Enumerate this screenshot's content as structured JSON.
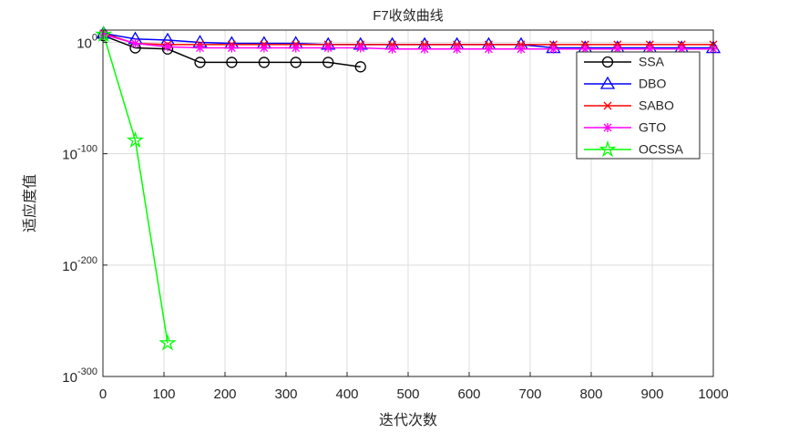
{
  "chart_data": {
    "type": "line",
    "title": "F7收敛曲线",
    "x_label": "迭代次数",
    "y_label": "适应度值",
    "y_scale": "log",
    "grid": true,
    "legend_position": "northeast",
    "xlim": [
      0,
      1000
    ],
    "xticks": [
      0,
      100,
      200,
      300,
      400,
      500,
      600,
      700,
      800,
      900,
      1000
    ],
    "ylim": [
      1e-300,
      100000000000.0
    ],
    "yticks": [
      {
        "value": 1e-300,
        "label": "10^{-300}"
      },
      {
        "value": 1e-200,
        "label": "10^{-200}"
      },
      {
        "value": 1e-100,
        "label": "10^{-100}"
      },
      {
        "value": 1,
        "label": "10^{0}"
      }
    ],
    "series": [
      {
        "name": "SSA",
        "color": "#000000",
        "marker": "circle",
        "x": [
          1,
          53,
          106,
          159,
          211,
          264,
          316,
          369,
          422
        ],
        "values": [
          1000000.0,
          1e-05,
          1e-06,
          1e-18,
          1e-18,
          1e-18,
          1e-18,
          1e-18,
          1e-22
        ]
      },
      {
        "name": "DBO",
        "color": "#0000ff",
        "marker": "triangle",
        "x": [
          1,
          53,
          106,
          159,
          211,
          264,
          316,
          369,
          422,
          474,
          527,
          580,
          632,
          685,
          738,
          790,
          843,
          896,
          948,
          1000
        ],
        "values": [
          100000000.0,
          1000.0,
          100.0,
          1,
          0.1,
          0.1,
          0.1,
          0.01,
          0.01,
          0.01,
          0.01,
          0.01,
          0.01,
          0.01,
          1e-05,
          1e-05,
          1e-05,
          1e-05,
          1e-05,
          1e-05
        ]
      },
      {
        "name": "SABO",
        "color": "#ff0000",
        "marker": "x",
        "x": [
          1,
          53,
          106,
          159,
          211,
          264,
          316,
          369,
          422,
          474,
          527,
          580,
          632,
          685,
          738,
          790,
          843,
          896,
          948,
          1000
        ],
        "values": [
          100000000.0,
          0.1,
          0.01,
          0.01,
          0.01,
          0.01,
          0.01,
          0.01,
          0.01,
          0.01,
          0.01,
          0.01,
          0.01,
          0.01,
          0.01,
          0.01,
          0.01,
          0.01,
          0.01,
          0.01
        ]
      },
      {
        "name": "GTO",
        "color": "#ff00ff",
        "marker": "asterisk",
        "x": [
          1,
          53,
          106,
          159,
          211,
          264,
          316,
          369,
          422,
          474,
          527,
          580,
          632,
          685,
          738,
          790,
          843,
          896,
          948,
          1000
        ],
        "values": [
          10000000.0,
          0.1,
          0.0001,
          1e-05,
          1e-05,
          1e-05,
          1e-05,
          1e-05,
          1e-05,
          1e-06,
          1e-06,
          1e-06,
          1e-06,
          1e-06,
          1e-06,
          1e-06,
          1e-06,
          1e-06,
          1e-06,
          1e-06
        ]
      },
      {
        "name": "OCSSA",
        "color": "#00ff00",
        "marker": "star",
        "x": [
          1,
          53,
          106
        ],
        "values": [
          10000000.0,
          1e-88,
          1e-270
        ]
      }
    ]
  }
}
